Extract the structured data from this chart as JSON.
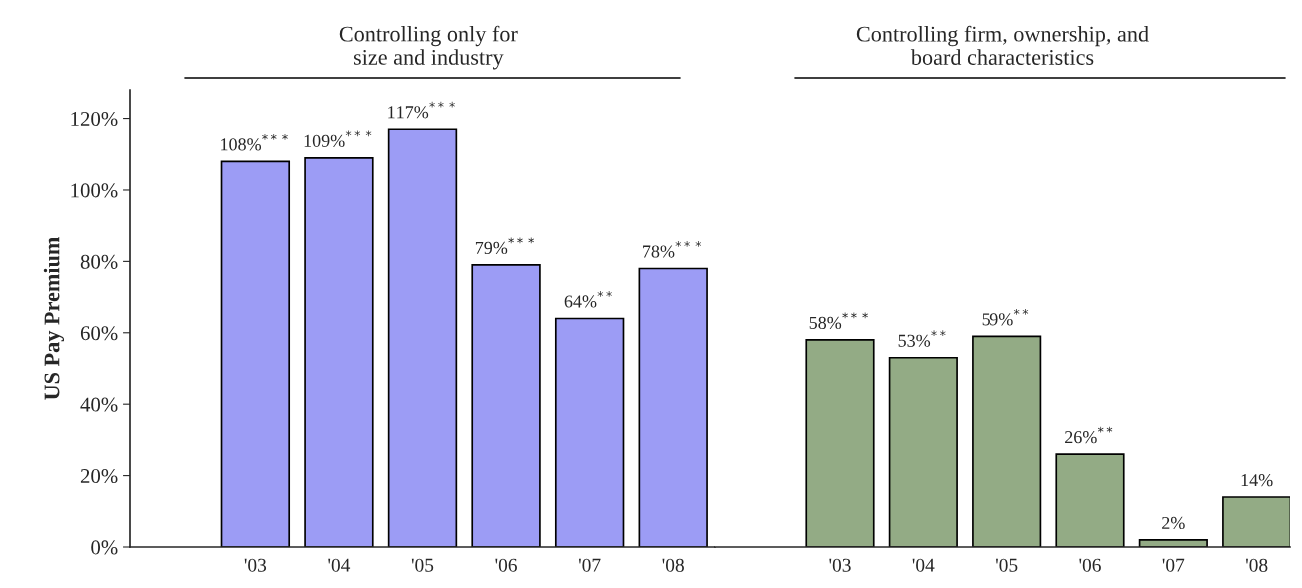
{
  "chart_data": [
    {
      "type": "bar",
      "title": "Controlling only for\nsize and industry",
      "ylabel": "US Pay Premium",
      "categories": [
        "'03",
        "'04",
        "'05",
        "'06",
        "'07",
        "'08"
      ],
      "series": [
        {
          "color": "#9c9cf5",
          "values": [
            108,
            109,
            117,
            79,
            64,
            78
          ],
          "value_labels": [
            "108%$^{***}$",
            "109%$^{***}$",
            "117%$^{***}$",
            "79%$^{***}$",
            "64%$^{**}$",
            "78%$^{***}$"
          ]
        }
      ],
      "ylim": [
        0,
        128
      ],
      "yticks": [
        {
          "value": 0,
          "label": "0%"
        },
        {
          "value": 20,
          "label": "20%"
        },
        {
          "value": 40,
          "label": "40%"
        },
        {
          "value": 60,
          "label": "60%"
        },
        {
          "value": 80,
          "label": "80%"
        },
        {
          "value": 100,
          "label": "100%"
        },
        {
          "value": 120,
          "label": "120%"
        }
      ],
      "grid": false,
      "legend": false
    },
    {
      "type": "bar",
      "title": "Controlling firm, ownership, and\nboard characteristics",
      "categories": [
        "'03",
        "'04",
        "'05",
        "'06",
        "'07",
        "'08"
      ],
      "series": [
        {
          "color": "#93ab85",
          "values": [
            58,
            53,
            59,
            26,
            2,
            14
          ],
          "value_labels": [
            "58%$^{***}$",
            "53%$^{**}$",
            "59%$^{**}$",
            "26%$^{**}$",
            "2%",
            "14%"
          ]
        }
      ],
      "ylim": [
        0,
        128
      ],
      "tick_labels": "x",
      "grid": false,
      "legend": false
    }
  ]
}
